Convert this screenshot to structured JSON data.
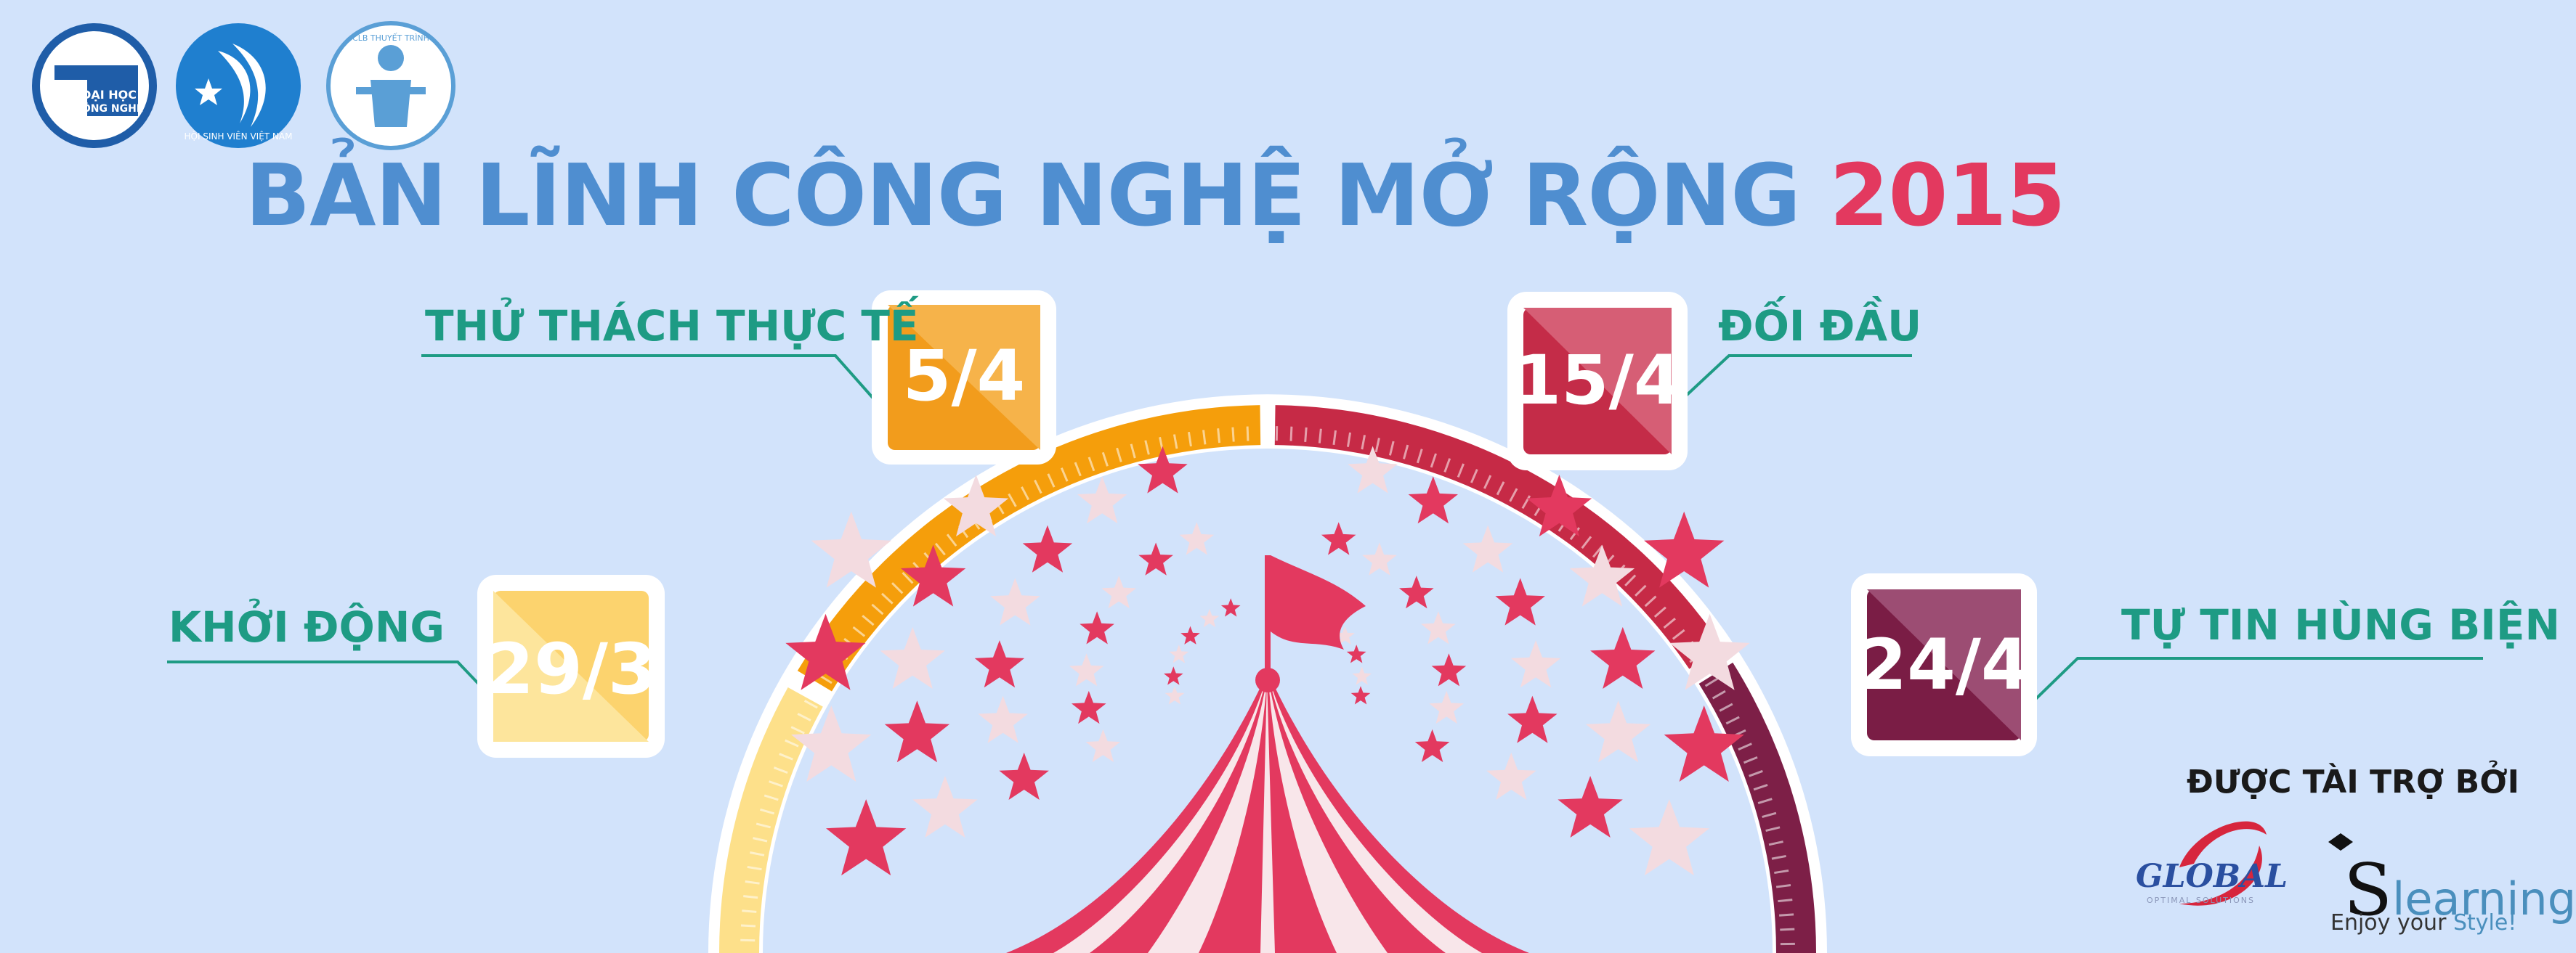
{
  "title": {
    "main": "BẢN LĨNH CÔNG NGHỆ MỞ RỘNG",
    "year": "2015"
  },
  "rounds": [
    {
      "label": "KHỞI ĐỘNG",
      "date": "29/3",
      "color": "#fde08a"
    },
    {
      "label": "THỬ THÁCH THỰC TẾ",
      "date": "5/4",
      "color": "#f59e0b"
    },
    {
      "label": "ĐỐI ĐẦU",
      "date": "15/4",
      "color": "#c62a46"
    },
    {
      "label": "TỰ TIN HÙNG BIỆN",
      "date": "24/4",
      "color": "#7d1f47"
    }
  ],
  "logos": [
    {
      "name": "dai-hoc-cong-nghe-logo",
      "text": "ĐẠI HỌC CÔNG NGHỆ",
      "color": "#1f5da8"
    },
    {
      "name": "hoi-sinh-vien-viet-nam-logo",
      "text": "HỘI SINH VIÊN VIỆT NAM",
      "color": "#1f7fcf"
    },
    {
      "name": "clb-thuyet-trinh-logo",
      "text": "CLB THUYẾT TRÌNH · TRƯỜNG ĐẠI HỌC CÔNG NGHỆ",
      "color": "#5a9fd6"
    }
  ],
  "sponsors": {
    "heading": "ĐƯỢC TÀI TRỢ BỞI",
    "global": {
      "name": "GLOBAL",
      "sub": "OPTIMAL SOLUTIONS"
    },
    "slearning": {
      "initial": "S",
      "name": "learning",
      "tagline_start": "Enjoy your ",
      "tagline_hl": "Style!"
    }
  },
  "colors": {
    "background": "#d2e3fb",
    "title_blue": "#4f8ed0",
    "title_red": "#e3395f",
    "label_green": "#1e9b84",
    "star_red": "#e3395f",
    "star_light": "#f3dbe0",
    "tent_red": "#e3395f"
  }
}
